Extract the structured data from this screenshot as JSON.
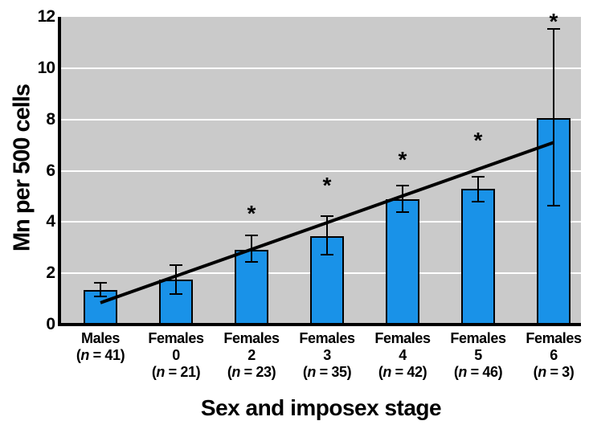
{
  "figure": {
    "y_axis_title": "Mn per 500 cells",
    "x_axis_title": "Sex and imposex stage"
  },
  "colors": {
    "bar_fill": "#1992e8",
    "bar_border": "#000000",
    "plot_background": "#cacaca",
    "gridline": "#ffffff",
    "axis": "#000000",
    "trend_line": "#000000",
    "text": "#000000"
  },
  "chart_data": {
    "type": "bar",
    "title": "",
    "xlabel": "Sex and imposex stage",
    "ylabel": "Mn per 500 cells",
    "ylim": [
      0,
      12
    ],
    "yticks": [
      0,
      2,
      4,
      6,
      8,
      10,
      12
    ],
    "gridlines_at": [
      2,
      4,
      6,
      8,
      10
    ],
    "grid": "horizontal-white-on-gray",
    "legend": "none",
    "significance_marker": "*",
    "categories": [
      "Males (n = 41)",
      "Females 0 (n = 21)",
      "Females 2 (n = 23)",
      "Females 3 (n = 35)",
      "Females 4 (n = 42)",
      "Females 5 (n = 46)",
      "Females 6 (n = 3)"
    ],
    "keys": [
      "males",
      "females-0",
      "females-2",
      "females-3",
      "females-4",
      "females-5",
      "females-6"
    ],
    "tick_label_lines": [
      [
        "Males",
        "(n = 41)"
      ],
      [
        "Females",
        "0",
        "(n = 21)"
      ],
      [
        "Females",
        "2",
        "(n = 23)"
      ],
      [
        "Females",
        "3",
        "(n = 35)"
      ],
      [
        "Females",
        "4",
        "(n = 42)"
      ],
      [
        "Females",
        "5",
        "(n = 46)"
      ],
      [
        "Females",
        "6",
        "(n = 3)"
      ]
    ],
    "values": [
      1.35,
      1.75,
      2.9,
      3.45,
      4.9,
      5.3,
      8.05
    ],
    "error_low": [
      1.05,
      1.15,
      2.4,
      2.7,
      4.35,
      4.75,
      4.6
    ],
    "error_high": [
      1.65,
      2.35,
      3.5,
      4.25,
      5.45,
      5.8,
      11.55
    ],
    "significant": [
      false,
      false,
      true,
      true,
      true,
      true,
      true
    ],
    "asterisk_y": [
      null,
      null,
      4.45,
      5.55,
      6.55,
      7.3,
      11.95
    ],
    "trend_line": {
      "start_category_index": 0,
      "start_value": 0.85,
      "end_category_index": 6,
      "end_value": 7.1
    }
  }
}
